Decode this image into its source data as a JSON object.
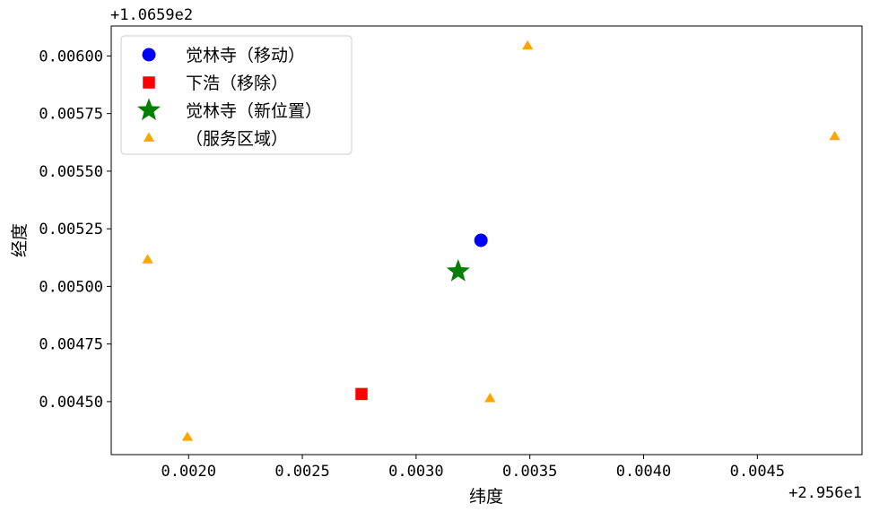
{
  "chart_data": {
    "type": "scatter",
    "xlabel": "纬度",
    "ylabel": "经度",
    "x_offset_label": "+2.956e1",
    "y_offset_label": "+1.0659e2",
    "xlim": [
      0.00166,
      0.00496
    ],
    "ylim": [
      0.00427,
      0.00613
    ],
    "x_ticks": [
      {
        "value": 0.002,
        "label": "0.0020"
      },
      {
        "value": 0.0025,
        "label": "0.0025"
      },
      {
        "value": 0.003,
        "label": "0.0030"
      },
      {
        "value": 0.0035,
        "label": "0.0035"
      },
      {
        "value": 0.004,
        "label": "0.0040"
      },
      {
        "value": 0.0045,
        "label": "0.0045"
      }
    ],
    "y_ticks": [
      {
        "value": 0.0045,
        "label": "0.00450"
      },
      {
        "value": 0.00475,
        "label": "0.00475"
      },
      {
        "value": 0.005,
        "label": "0.00500"
      },
      {
        "value": 0.00525,
        "label": "0.00525"
      },
      {
        "value": 0.0055,
        "label": "0.00550"
      },
      {
        "value": 0.00575,
        "label": "0.00575"
      },
      {
        "value": 0.006,
        "label": "0.00600"
      }
    ],
    "grid": false,
    "legend_position": "top-left",
    "series": [
      {
        "name": "觉林寺（移动）",
        "marker": "circle",
        "color": "#0000ff",
        "points": [
          {
            "x": 0.003285,
            "y": 0.0052
          }
        ]
      },
      {
        "name": "下浩（移除）",
        "marker": "square",
        "color": "#ff0000",
        "points": [
          {
            "x": 0.00276,
            "y": 0.004533
          }
        ]
      },
      {
        "name": "觉林寺（新位置）",
        "marker": "star",
        "color": "#008000",
        "points": [
          {
            "x": 0.003185,
            "y": 0.005065
          }
        ]
      },
      {
        "name": "（服务区域）",
        "marker": "triangle",
        "color": "#ffa500",
        "points": [
          {
            "x": 0.00349,
            "y": 0.006043
          },
          {
            "x": 0.00484,
            "y": 0.00565
          },
          {
            "x": 0.00182,
            "y": 0.005115
          },
          {
            "x": 0.003325,
            "y": 0.004513
          },
          {
            "x": 0.001995,
            "y": 0.004345
          }
        ]
      }
    ]
  }
}
